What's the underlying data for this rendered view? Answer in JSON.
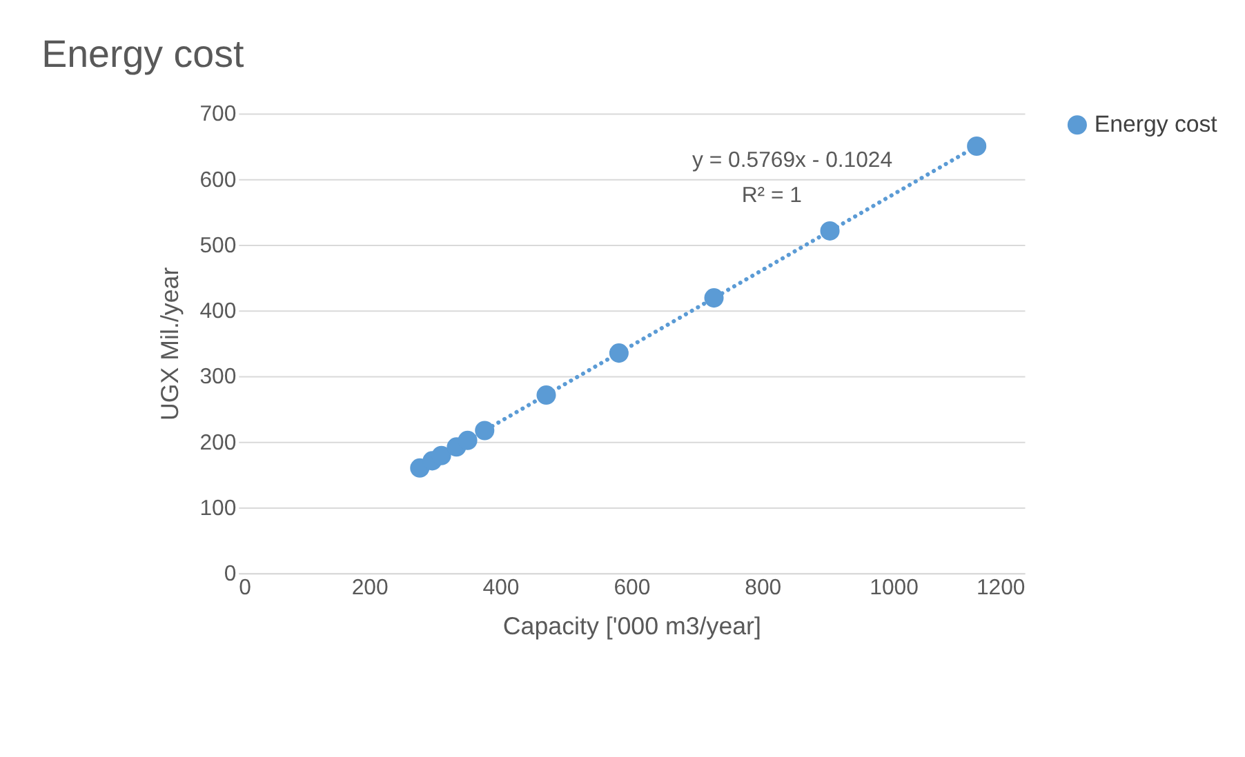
{
  "chart_data": {
    "type": "scatter",
    "title": "Energy cost",
    "xlabel": "Capacity ['000 m3/year]",
    "ylabel": "UGX Mil./year",
    "xlim": [
      0,
      1200
    ],
    "xticks": [
      0,
      200,
      400,
      600,
      800,
      1000,
      1200
    ],
    "ylim": [
      0,
      700
    ],
    "yticks": [
      0,
      100,
      200,
      300,
      400,
      500,
      600,
      700
    ],
    "grid": "y",
    "legend": "right",
    "series": [
      {
        "name": "Energy cost",
        "marker": "circle",
        "color": "#5b9bd5",
        "x": [
          277,
          296,
          310,
          333,
          350,
          376,
          470,
          581,
          726,
          903,
          1127
        ],
        "values": [
          160,
          171,
          179,
          192,
          202,
          217,
          271,
          335,
          419,
          521,
          650
        ]
      },
      {
        "type": "line",
        "line_style": "dotted",
        "color": "#5b9bd5",
        "x": [
          277,
          1127
        ],
        "values": [
          160,
          650
        ]
      }
    ],
    "annotations": [
      "y = 0.5769x - 0.1024",
      "R² = 1"
    ]
  }
}
